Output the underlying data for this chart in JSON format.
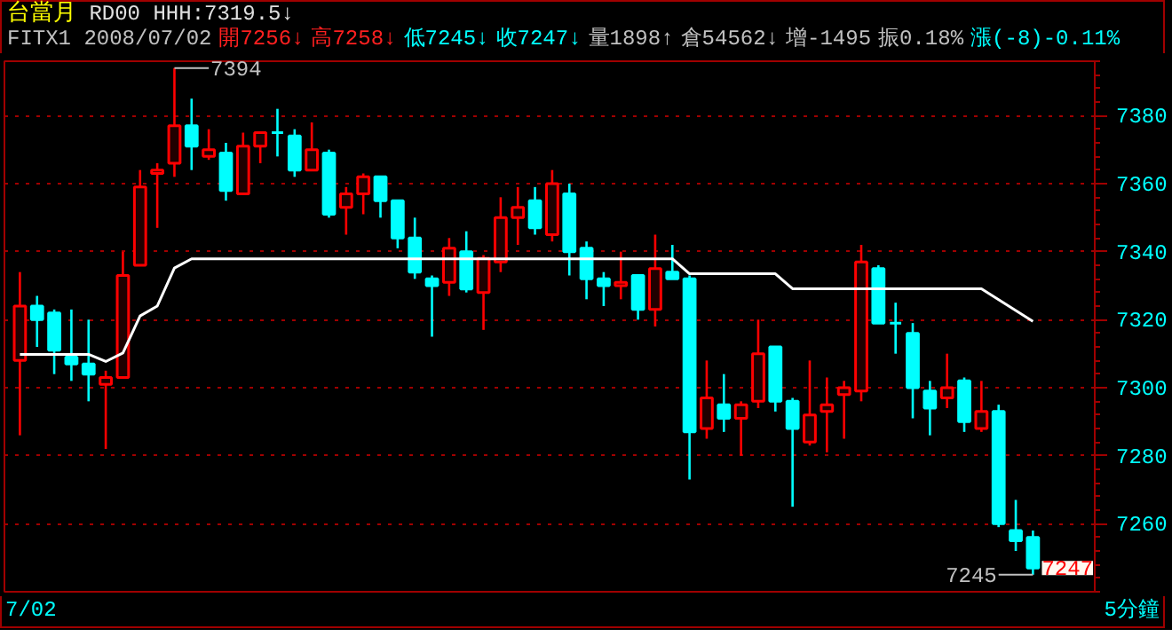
{
  "chart_data": {
    "type": "candlestick",
    "title": "台當月",
    "annotations": [
      "RD00 HHH:7319.5↓",
      "FITX1 2008/07/02",
      "開7256↓",
      "高7258↓",
      "低7245↓",
      "收7247↓",
      "量1898↑",
      "倉54562↓",
      "增-1495",
      "振0.18%",
      "漲(-8)-0.11%",
      "7394",
      "7245",
      "7247",
      "7/02",
      "5分鐘"
    ],
    "categories": [
      null,
      null,
      null,
      null,
      null,
      null,
      null,
      null,
      null,
      null,
      null,
      null,
      null,
      null,
      null,
      null,
      null,
      null,
      null,
      null,
      null,
      null,
      null,
      null,
      null,
      null,
      null,
      null,
      null,
      null,
      null,
      null,
      null,
      null,
      null,
      null,
      null,
      null,
      null,
      null,
      null,
      null,
      null,
      null,
      null,
      null,
      null,
      null,
      null,
      null,
      null,
      null,
      null,
      null,
      null,
      null,
      null,
      null,
      null,
      null
    ],
    "ohlc": [
      [
        7308,
        7334,
        7286,
        7324
      ],
      [
        7324,
        7327,
        7312,
        7320
      ],
      [
        7322,
        7323,
        7304,
        7311
      ],
      [
        7309,
        7323,
        7302,
        7307
      ],
      [
        7307,
        7320,
        7296,
        7304
      ],
      [
        7301,
        7305,
        7282,
        7303
      ],
      [
        7303,
        7340,
        7303,
        7333
      ],
      [
        7336,
        7364,
        7336,
        7359
      ],
      [
        7363,
        7366,
        7347,
        7364
      ],
      [
        7366,
        7394,
        7362,
        7377
      ],
      [
        7377,
        7385,
        7364,
        7371
      ],
      [
        7368,
        7376,
        7367,
        7370
      ],
      [
        7369,
        7372,
        7355,
        7358
      ],
      [
        7357,
        7375,
        7357,
        7371
      ],
      [
        7371,
        7375,
        7366,
        7375
      ],
      [
        7375,
        7382,
        7368,
        7375
      ],
      [
        7374,
        7376,
        7362,
        7364
      ],
      [
        7364,
        7378,
        7364,
        7370
      ],
      [
        7369,
        7370,
        7350,
        7351
      ],
      [
        7353,
        7359,
        7345,
        7357
      ],
      [
        7357,
        7363,
        7351,
        7362
      ],
      [
        7362,
        7362,
        7350,
        7355
      ],
      [
        7355,
        7355,
        7341,
        7344
      ],
      [
        7344,
        7350,
        7332,
        7334
      ],
      [
        7332,
        7333,
        7315,
        7330
      ],
      [
        7331,
        7344,
        7327,
        7341
      ],
      [
        7340,
        7346,
        7328,
        7329
      ],
      [
        7328,
        7339,
        7317,
        7338
      ],
      [
        7337,
        7356,
        7334,
        7350
      ],
      [
        7350,
        7359,
        7342,
        7353
      ],
      [
        7355,
        7359,
        7345,
        7347
      ],
      [
        7345,
        7364,
        7343,
        7360
      ],
      [
        7357,
        7360,
        7333,
        7340
      ],
      [
        7341,
        7343,
        7326,
        7332
      ],
      [
        7332,
        7334,
        7324,
        7330
      ],
      [
        7330,
        7340,
        7326,
        7331
      ],
      [
        7333,
        7333,
        7320,
        7323
      ],
      [
        7323,
        7345,
        7318,
        7335
      ],
      [
        7334,
        7342,
        7332,
        7332
      ],
      [
        7332,
        7333,
        7273,
        7287
      ],
      [
        7288,
        7308,
        7285,
        7297
      ],
      [
        7295,
        7304,
        7287,
        7291
      ],
      [
        7291,
        7296,
        7280,
        7295
      ],
      [
        7296,
        7320,
        7294,
        7310
      ],
      [
        7312,
        7312,
        7293,
        7296
      ],
      [
        7296,
        7297,
        7265,
        7288
      ],
      [
        7284,
        7308,
        7283,
        7292
      ],
      [
        7293,
        7303,
        7281,
        7295
      ],
      [
        7298,
        7302,
        7285,
        7300
      ],
      [
        7299,
        7342,
        7296,
        7337
      ],
      [
        7335,
        7336,
        7319,
        7319
      ],
      [
        7319,
        7325,
        7310,
        7319
      ],
      [
        7316,
        7319,
        7291,
        7300
      ],
      [
        7299,
        7302,
        7286,
        7294
      ],
      [
        7297,
        7310,
        7294,
        7300
      ],
      [
        7302,
        7303,
        7287,
        7290
      ],
      [
        7288,
        7302,
        7287,
        7293
      ],
      [
        7293,
        7295,
        7259,
        7260
      ],
      [
        7258,
        7267,
        7252,
        7255
      ],
      [
        7256,
        7258,
        7245,
        7247
      ]
    ],
    "colors": [
      "#ff0000",
      "#00ffff",
      "#00ffff",
      "#00ffff",
      "#00ffff",
      "#ff0000",
      "#ff0000",
      "#ff0000",
      "#ff0000",
      "#ff0000",
      "#00ffff",
      "#ff0000",
      "#00ffff",
      "#ff0000",
      "#ff0000",
      "#00ffff",
      "#00ffff",
      "#ff0000",
      "#00ffff",
      "#ff0000",
      "#ff0000",
      "#00ffff",
      "#00ffff",
      "#00ffff",
      "#00ffff",
      "#ff0000",
      "#00ffff",
      "#ff0000",
      "#ff0000",
      "#ff0000",
      "#00ffff",
      "#ff0000",
      "#00ffff",
      "#00ffff",
      "#00ffff",
      "#ff0000",
      "#00ffff",
      "#ff0000",
      "#00ffff",
      "#00ffff",
      "#ff0000",
      "#00ffff",
      "#ff0000",
      "#ff0000",
      "#00ffff",
      "#00ffff",
      "#ff0000",
      "#ff0000",
      "#ff0000",
      "#ff0000",
      "#00ffff",
      "#00ffff",
      "#00ffff",
      "#00ffff",
      "#ff0000",
      "#00ffff",
      "#ff0000",
      "#00ffff",
      "#00ffff",
      "#00ffff"
    ],
    "series": [
      {
        "type": "line",
        "color": "#ffffff",
        "values": [
          7309.8,
          7309.8,
          7309.8,
          7309.8,
          7309.8,
          7307.7,
          7310.2,
          7321.1,
          7324,
          7335.2,
          7337.9,
          7337.9,
          7337.9,
          7337.9,
          7337.9,
          7337.9,
          7337.9,
          7337.9,
          7337.9,
          7337.9,
          7337.9,
          7337.9,
          7337.9,
          7337.9,
          7337.9,
          7337.9,
          7337.9,
          7337.9,
          7337.9,
          7337.9,
          7337.9,
          7337.9,
          7337.9,
          7337.9,
          7337.9,
          7337.9,
          7337.9,
          7337.9,
          7337.9,
          7333.5,
          7333.5,
          7333.5,
          7333.5,
          7333.5,
          7333.5,
          7329.1,
          7329.1,
          7329.1,
          7329.1,
          7329.1,
          7329.1,
          7329.1,
          7329.1,
          7329.1,
          7329.1,
          7329.1,
          7329.1,
          7325.9,
          7322.7,
          7319.5
        ]
      }
    ],
    "ylim": [
      7240,
      7396
    ],
    "yticks": [
      7260,
      7280,
      7300,
      7320,
      7340,
      7360,
      7380
    ],
    "grid": "y",
    "tick_labels": "y"
  }
}
